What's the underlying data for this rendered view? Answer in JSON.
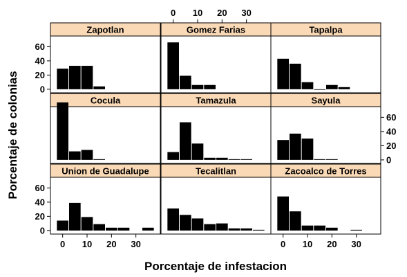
{
  "chart_data": {
    "type": "bar",
    "xlabel": "Porcentaje de infestacion",
    "ylabel": "Porcentaje de colonias",
    "xlim": [
      -5,
      40
    ],
    "ylim": [
      -5,
      75
    ],
    "bin_width": 5,
    "x_ticks": [
      0,
      10,
      20,
      30
    ],
    "y_ticks": [
      0,
      20,
      40,
      60
    ],
    "strip_color": "#FAD9B6",
    "bar_color": "#000000",
    "panels": [
      {
        "name": "Zapotlan",
        "x": [
          0,
          5,
          10,
          15
        ],
        "values": [
          29,
          33,
          33,
          4
        ]
      },
      {
        "name": "Gomez Farias",
        "x": [
          0,
          5,
          10,
          15
        ],
        "values": [
          66,
          19,
          6,
          6
        ]
      },
      {
        "name": "Tapalpa",
        "x": [
          0,
          5,
          10,
          15,
          20,
          25
        ],
        "values": [
          43,
          36,
          10,
          0,
          6,
          3
        ]
      },
      {
        "name": "Cocula",
        "x": [
          0,
          5,
          10,
          15
        ],
        "values": [
          81,
          12,
          14,
          1
        ]
      },
      {
        "name": "Tamazula",
        "x": [
          0,
          5,
          10,
          15,
          20,
          25,
          30
        ],
        "values": [
          11,
          53,
          23,
          3,
          3,
          1,
          1
        ]
      },
      {
        "name": "Sayula",
        "x": [
          0,
          5,
          10,
          15,
          20
        ],
        "values": [
          28,
          37,
          30,
          1,
          1
        ]
      },
      {
        "name": "Union de Guadalupe",
        "x": [
          0,
          5,
          10,
          15,
          20,
          25,
          35
        ],
        "values": [
          14,
          39,
          19,
          9,
          4,
          4,
          4
        ]
      },
      {
        "name": "Tecalitlan",
        "x": [
          0,
          5,
          10,
          15,
          20,
          25,
          30,
          35
        ],
        "values": [
          31,
          22,
          17,
          9,
          10,
          3,
          3,
          1
        ]
      },
      {
        "name": "Zacoalco de Torres",
        "x": [
          0,
          5,
          10,
          15,
          20,
          30
        ],
        "values": [
          48,
          27,
          7,
          7,
          4,
          1
        ]
      }
    ]
  }
}
